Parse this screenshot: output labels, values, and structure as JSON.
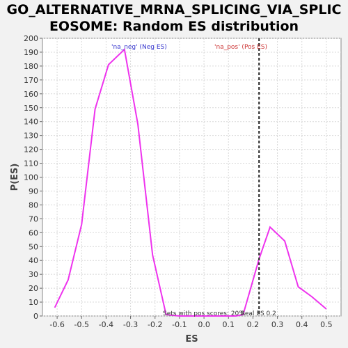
{
  "title_line1": "GO_ALTERNATIVE_MRNA_SPLICING_VIA_SPLIC",
  "title_line2": "EOSOME: Random ES distribution",
  "chart_data": {
    "type": "line",
    "xlabel": "ES",
    "ylabel": "P(ES)",
    "xlim": [
      -0.66,
      0.56
    ],
    "ylim": [
      0,
      200
    ],
    "x_ticks": [
      "-0.6",
      "-0.5",
      "-0.4",
      "-0.3",
      "-0.2",
      "-0.1",
      "0.0",
      "0.1",
      "0.2",
      "0.3",
      "0.4",
      "0.5"
    ],
    "x_tick_values": [
      -0.6,
      -0.5,
      -0.4,
      -0.3,
      -0.2,
      -0.1,
      0.0,
      0.1,
      0.2,
      0.3,
      0.4,
      0.5
    ],
    "y_ticks": [
      0,
      10,
      20,
      30,
      40,
      50,
      60,
      70,
      80,
      90,
      100,
      110,
      120,
      130,
      140,
      150,
      160,
      170,
      180,
      190,
      200
    ],
    "grid": true,
    "series": [
      {
        "color": "#ee33ee",
        "x": [
          -0.61,
          -0.555,
          -0.5,
          -0.445,
          -0.39,
          -0.325,
          -0.27,
          -0.21,
          -0.155,
          -0.1,
          -0.04,
          0.015,
          0.07,
          0.13,
          0.16,
          0.225,
          0.27,
          0.33,
          0.385,
          0.44,
          0.5
        ],
        "y": [
          6,
          26,
          66,
          149,
          181,
          192,
          138,
          44,
          1,
          0,
          0,
          0,
          0,
          0,
          1,
          41,
          64,
          54,
          21,
          14,
          5
        ]
      }
    ],
    "real_es": {
      "value": 0.225,
      "label": "Real ES 0.2",
      "color": "#222222"
    },
    "annotations": {
      "neg_label": "'na_neg' (Neg ES)",
      "neg_color": "#3333cc",
      "pos_label": "'na_pos' (Pos ES)",
      "pos_color": "#cc3333",
      "sets_label": "Sets with pos scores: 20%"
    }
  }
}
